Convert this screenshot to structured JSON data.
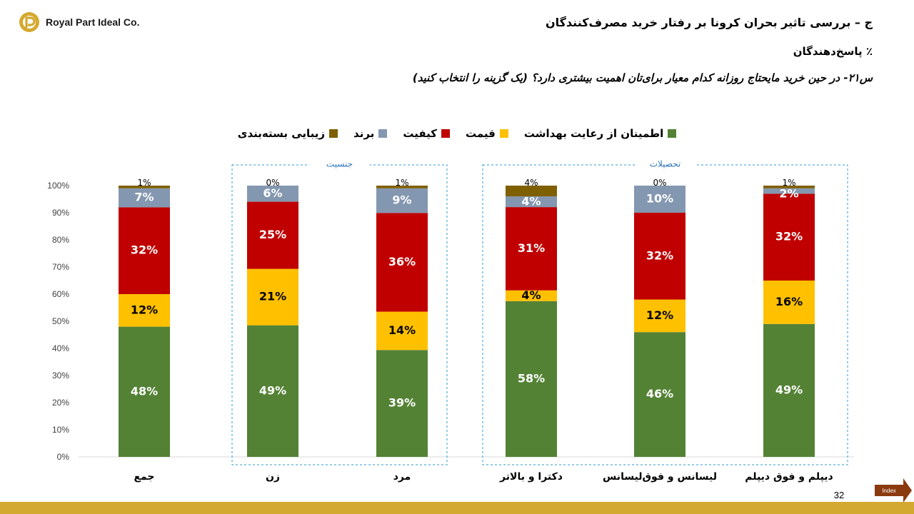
{
  "brand": {
    "name": "Royal Part Ideal Co."
  },
  "header": {
    "title": "ج – بررسی تاثیر بحران کرونا بر رفتار خرید مصرف‌کنندگان",
    "unit": "٪ پاسخ‌دهندگان",
    "question": "س۲۱- در حین خرید مایحتاج روزانه کدام معیار برای‌تان اهمیت بیشتری دارد؟ (یک گزینه را انتخاب کنید)"
  },
  "footer": {
    "page_number": "32",
    "index_label": "Index",
    "bar_color": "#d4a92f"
  },
  "chart_data": {
    "type": "bar",
    "stacked": true,
    "categories": [
      "جمع",
      "زن",
      "مرد",
      "دکترا و بالاتر",
      "لیسانس و فوق‌لیسانس",
      "دیپلم و فوق دیپلم"
    ],
    "groups": [
      {
        "label": "جنسیت",
        "categories": [
          "زن",
          "مرد"
        ]
      },
      {
        "label": "تحصیلات",
        "categories": [
          "دکترا و بالاتر",
          "لیسانس و فوق‌لیسانس",
          "دیپلم و فوق دیپلم"
        ]
      }
    ],
    "series": [
      {
        "name": "اطمینان از رعایت بهداشت",
        "color": "#548235",
        "values": [
          48,
          49,
          39,
          58,
          46,
          49
        ]
      },
      {
        "name": "قیمت",
        "color": "#ffc000",
        "values": [
          12,
          21,
          14,
          4,
          12,
          16
        ]
      },
      {
        "name": "کیفیت",
        "color": "#c00000",
        "values": [
          32,
          25,
          36,
          31,
          32,
          32
        ]
      },
      {
        "name": "برند",
        "color": "#8497b0",
        "values": [
          7,
          6,
          9,
          4,
          10,
          2
        ]
      },
      {
        "name": "زیبایی بسته‌بندی",
        "color": "#7f6000",
        "values": [
          1,
          0,
          1,
          4,
          0,
          1
        ]
      }
    ],
    "yticks": [
      "0%",
      "10%",
      "20%",
      "30%",
      "40%",
      "50%",
      "60%",
      "70%",
      "80%",
      "90%",
      "100%"
    ],
    "ylim": [
      0,
      100
    ],
    "legend_position": "top",
    "grid": false
  }
}
